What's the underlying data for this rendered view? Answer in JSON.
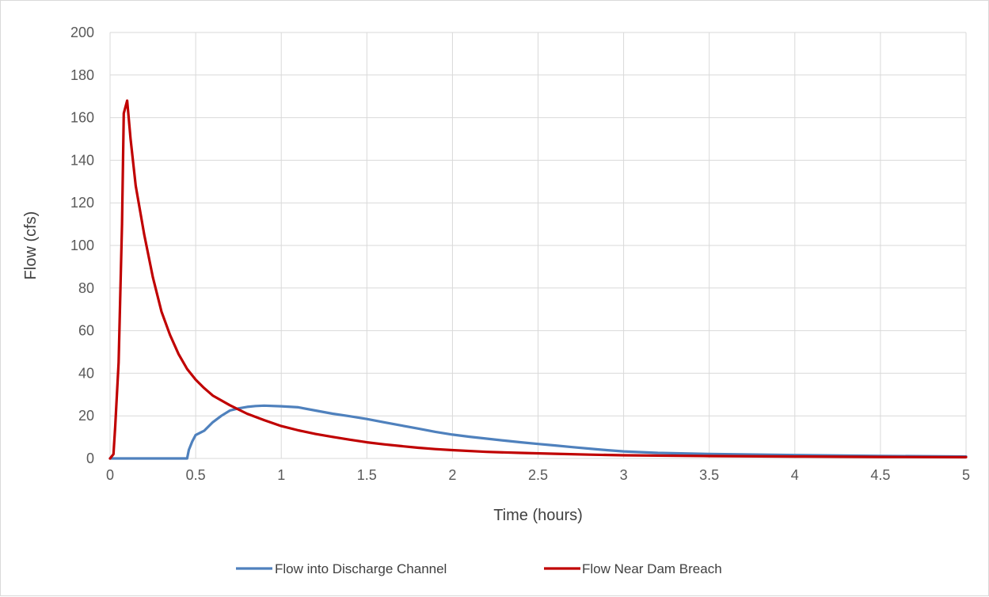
{
  "chart_data": {
    "type": "line",
    "title": "",
    "xlabel": "Time (hours)",
    "ylabel": "Flow (cfs)",
    "xlim": [
      0,
      5
    ],
    "ylim": [
      0,
      200
    ],
    "x_ticks": [
      "0",
      "0.5",
      "1",
      "1.5",
      "2",
      "2.5",
      "3",
      "3.5",
      "4",
      "4.5",
      "5"
    ],
    "y_ticks": [
      "0",
      "20",
      "40",
      "60",
      "80",
      "100",
      "120",
      "140",
      "160",
      "180",
      "200"
    ],
    "grid": true,
    "legend_position": "bottom",
    "series": [
      {
        "name": "Flow into Discharge Channel",
        "color": "#4f81bd",
        "points": [
          [
            0,
            0
          ],
          [
            0.1,
            0
          ],
          [
            0.2,
            0
          ],
          [
            0.3,
            0
          ],
          [
            0.4,
            0
          ],
          [
            0.45,
            0
          ],
          [
            0.46,
            4
          ],
          [
            0.48,
            8
          ],
          [
            0.5,
            11
          ],
          [
            0.55,
            13
          ],
          [
            0.6,
            17
          ],
          [
            0.65,
            20
          ],
          [
            0.7,
            22.5
          ],
          [
            0.75,
            23.5
          ],
          [
            0.8,
            24.2
          ],
          [
            0.85,
            24.6
          ],
          [
            0.9,
            24.8
          ],
          [
            1.0,
            24.5
          ],
          [
            1.1,
            24
          ],
          [
            1.2,
            22.5
          ],
          [
            1.3,
            21
          ],
          [
            1.4,
            19.8
          ],
          [
            1.5,
            18.5
          ],
          [
            1.6,
            17
          ],
          [
            1.7,
            15.5
          ],
          [
            1.8,
            14
          ],
          [
            1.9,
            12.5
          ],
          [
            2.0,
            11.2
          ],
          [
            2.1,
            10.2
          ],
          [
            2.2,
            9.3
          ],
          [
            2.3,
            8.4
          ],
          [
            2.4,
            7.6
          ],
          [
            2.5,
            6.8
          ],
          [
            2.6,
            6.1
          ],
          [
            2.7,
            5.3
          ],
          [
            2.8,
            4.6
          ],
          [
            2.9,
            3.9
          ],
          [
            3.0,
            3.3
          ],
          [
            3.2,
            2.6
          ],
          [
            3.5,
            2.1
          ],
          [
            4.0,
            1.6
          ],
          [
            4.5,
            1.2
          ],
          [
            5.0,
            0.9
          ]
        ]
      },
      {
        "name": "Flow Near Dam Breach",
        "color": "#c00000",
        "points": [
          [
            0,
            0
          ],
          [
            0.02,
            2
          ],
          [
            0.03,
            15
          ],
          [
            0.05,
            45
          ],
          [
            0.07,
            110
          ],
          [
            0.08,
            162
          ],
          [
            0.1,
            168
          ],
          [
            0.12,
            150
          ],
          [
            0.15,
            128
          ],
          [
            0.2,
            105
          ],
          [
            0.25,
            85
          ],
          [
            0.3,
            69
          ],
          [
            0.35,
            58
          ],
          [
            0.4,
            49
          ],
          [
            0.45,
            42
          ],
          [
            0.5,
            37
          ],
          [
            0.55,
            33
          ],
          [
            0.6,
            29.5
          ],
          [
            0.7,
            25
          ],
          [
            0.8,
            21
          ],
          [
            0.9,
            18
          ],
          [
            1.0,
            15.2
          ],
          [
            1.1,
            13.2
          ],
          [
            1.2,
            11.5
          ],
          [
            1.3,
            10.1
          ],
          [
            1.4,
            8.8
          ],
          [
            1.5,
            7.6
          ],
          [
            1.6,
            6.6
          ],
          [
            1.7,
            5.8
          ],
          [
            1.8,
            5
          ],
          [
            1.9,
            4.4
          ],
          [
            2.0,
            3.9
          ],
          [
            2.2,
            3.1
          ],
          [
            2.4,
            2.6
          ],
          [
            2.6,
            2.2
          ],
          [
            2.8,
            1.8
          ],
          [
            3.0,
            1.5
          ],
          [
            3.5,
            1.1
          ],
          [
            4.0,
            0.9
          ],
          [
            4.5,
            0.7
          ],
          [
            5.0,
            0.6
          ]
        ]
      }
    ]
  }
}
